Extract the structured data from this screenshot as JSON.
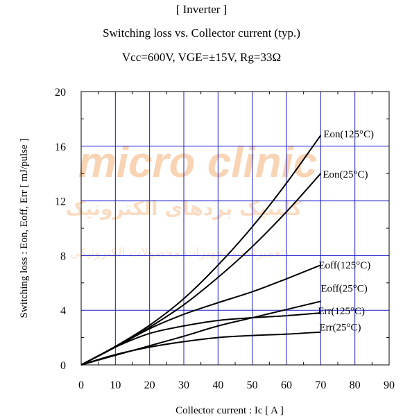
{
  "chart_data": {
    "type": "line",
    "title_lines": [
      "[ Inverter ]",
      "Switching loss  vs.  Collector current  (typ.)",
      "Vcc=600V, VGE=±15V, Rg=33Ω"
    ],
    "xlabel": "Collector current  :  Ic  [ A ]",
    "ylabel": "Switching loss  :  Eon, Eoff, Err  [ mJ/pulse ]",
    "xlim": [
      0,
      90
    ],
    "ylim": [
      0,
      20
    ],
    "xticks": [
      0,
      10,
      20,
      30,
      40,
      50,
      60,
      70,
      80,
      90
    ],
    "yticks": [
      0,
      4,
      8,
      12,
      16,
      20
    ],
    "grid": true,
    "series": [
      {
        "name": "Eon(125°C)",
        "x": [
          0,
          10,
          20,
          30,
          40,
          50,
          60,
          70
        ],
        "y": [
          0,
          1.35,
          2.9,
          4.85,
          7.3,
          10.1,
          13.3,
          16.8
        ]
      },
      {
        "name": "Eon(25°C)",
        "x": [
          0,
          10,
          20,
          30,
          40,
          50,
          60,
          70
        ],
        "y": [
          0,
          1.3,
          2.75,
          4.4,
          6.4,
          8.65,
          11.2,
          14.0
        ]
      },
      {
        "name": "Eoff(125°C)",
        "x": [
          0,
          10,
          20,
          30,
          40,
          50,
          60,
          70
        ],
        "y": [
          0,
          1.3,
          2.65,
          3.7,
          4.55,
          5.35,
          6.3,
          7.3
        ]
      },
      {
        "name": "Eoff(25°C)",
        "x": [
          0,
          10,
          20,
          30,
          40,
          50,
          60,
          70
        ],
        "y": [
          0,
          0.7,
          1.4,
          2.1,
          2.85,
          3.45,
          4.05,
          4.65
        ]
      },
      {
        "name": "Err(125°C)",
        "x": [
          0,
          10,
          20,
          30,
          40,
          50,
          60,
          70
        ],
        "y": [
          0,
          1.3,
          2.3,
          2.85,
          3.25,
          3.45,
          3.6,
          3.8
        ]
      },
      {
        "name": "Err(25°C)",
        "x": [
          0,
          10,
          20,
          30,
          40,
          50,
          60,
          70
        ],
        "y": [
          0,
          0.75,
          1.3,
          1.7,
          2.0,
          2.15,
          2.25,
          2.4
        ]
      }
    ],
    "colors": {
      "grid": "#1a1acc",
      "line": "#000000",
      "watermark": "#f4b27a"
    }
  },
  "watermark": {
    "line1": "micro clinic",
    "line2": "کلینیک بردهای الکترونیک",
    "line3": "تعمیرات و تجهیزات محصولات الکترونیکی"
  }
}
